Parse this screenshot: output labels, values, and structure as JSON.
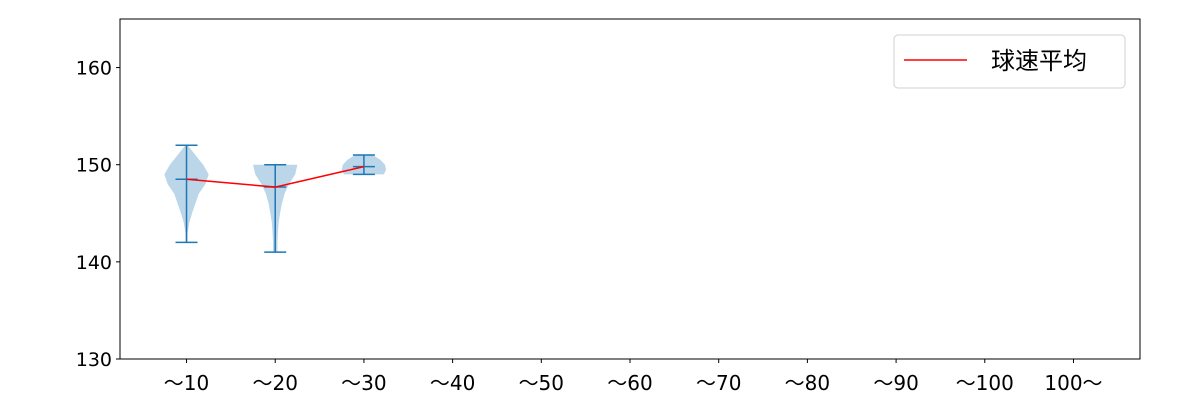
{
  "chart_data": {
    "type": "violin",
    "title": "",
    "xlabel": "",
    "ylabel": "",
    "categories": [
      "〜10",
      "〜20",
      "〜30",
      "〜40",
      "〜50",
      "〜60",
      "〜70",
      "〜80",
      "〜90",
      "〜100",
      "100〜"
    ],
    "ylim": [
      130,
      165
    ],
    "yticks": [
      130,
      140,
      150,
      160
    ],
    "grid": false,
    "legend": {
      "position": "top-right",
      "entries": [
        {
          "label": "球速平均",
          "color": "#ff0000"
        }
      ]
    },
    "colors": {
      "violin_fill": "#1f77b4",
      "violin_lines": "#1f77b4",
      "mean_line": "#ff0000"
    },
    "violins": [
      {
        "category": "〜10",
        "min": 142,
        "max": 152,
        "mean": 148.5,
        "density": [
          [
            142,
            0.04
          ],
          [
            143,
            0.05
          ],
          [
            144,
            0.12
          ],
          [
            145,
            0.25
          ],
          [
            146,
            0.4
          ],
          [
            147,
            0.55
          ],
          [
            148,
            0.85
          ],
          [
            149,
            1.0
          ],
          [
            150,
            0.75
          ],
          [
            151,
            0.4
          ],
          [
            152,
            0.05
          ]
        ]
      },
      {
        "category": "〜20",
        "min": 141,
        "max": 150,
        "mean": 147.7,
        "density": [
          [
            141,
            0.1
          ],
          [
            142,
            0.1
          ],
          [
            143,
            0.12
          ],
          [
            144,
            0.15
          ],
          [
            145,
            0.22
          ],
          [
            146,
            0.3
          ],
          [
            147,
            0.42
          ],
          [
            148,
            0.62
          ],
          [
            149,
            0.9
          ],
          [
            150,
            1.0
          ]
        ]
      },
      {
        "category": "〜30",
        "min": 149,
        "max": 151,
        "mean": 149.8,
        "density": [
          [
            149,
            0.9
          ],
          [
            149.5,
            1.0
          ],
          [
            150,
            0.95
          ],
          [
            150.5,
            0.75
          ],
          [
            151,
            0.4
          ]
        ]
      }
    ],
    "mean_series": {
      "name": "球速平均",
      "categories": [
        "〜10",
        "〜20",
        "〜30"
      ],
      "values": [
        148.5,
        147.7,
        149.8
      ]
    }
  }
}
